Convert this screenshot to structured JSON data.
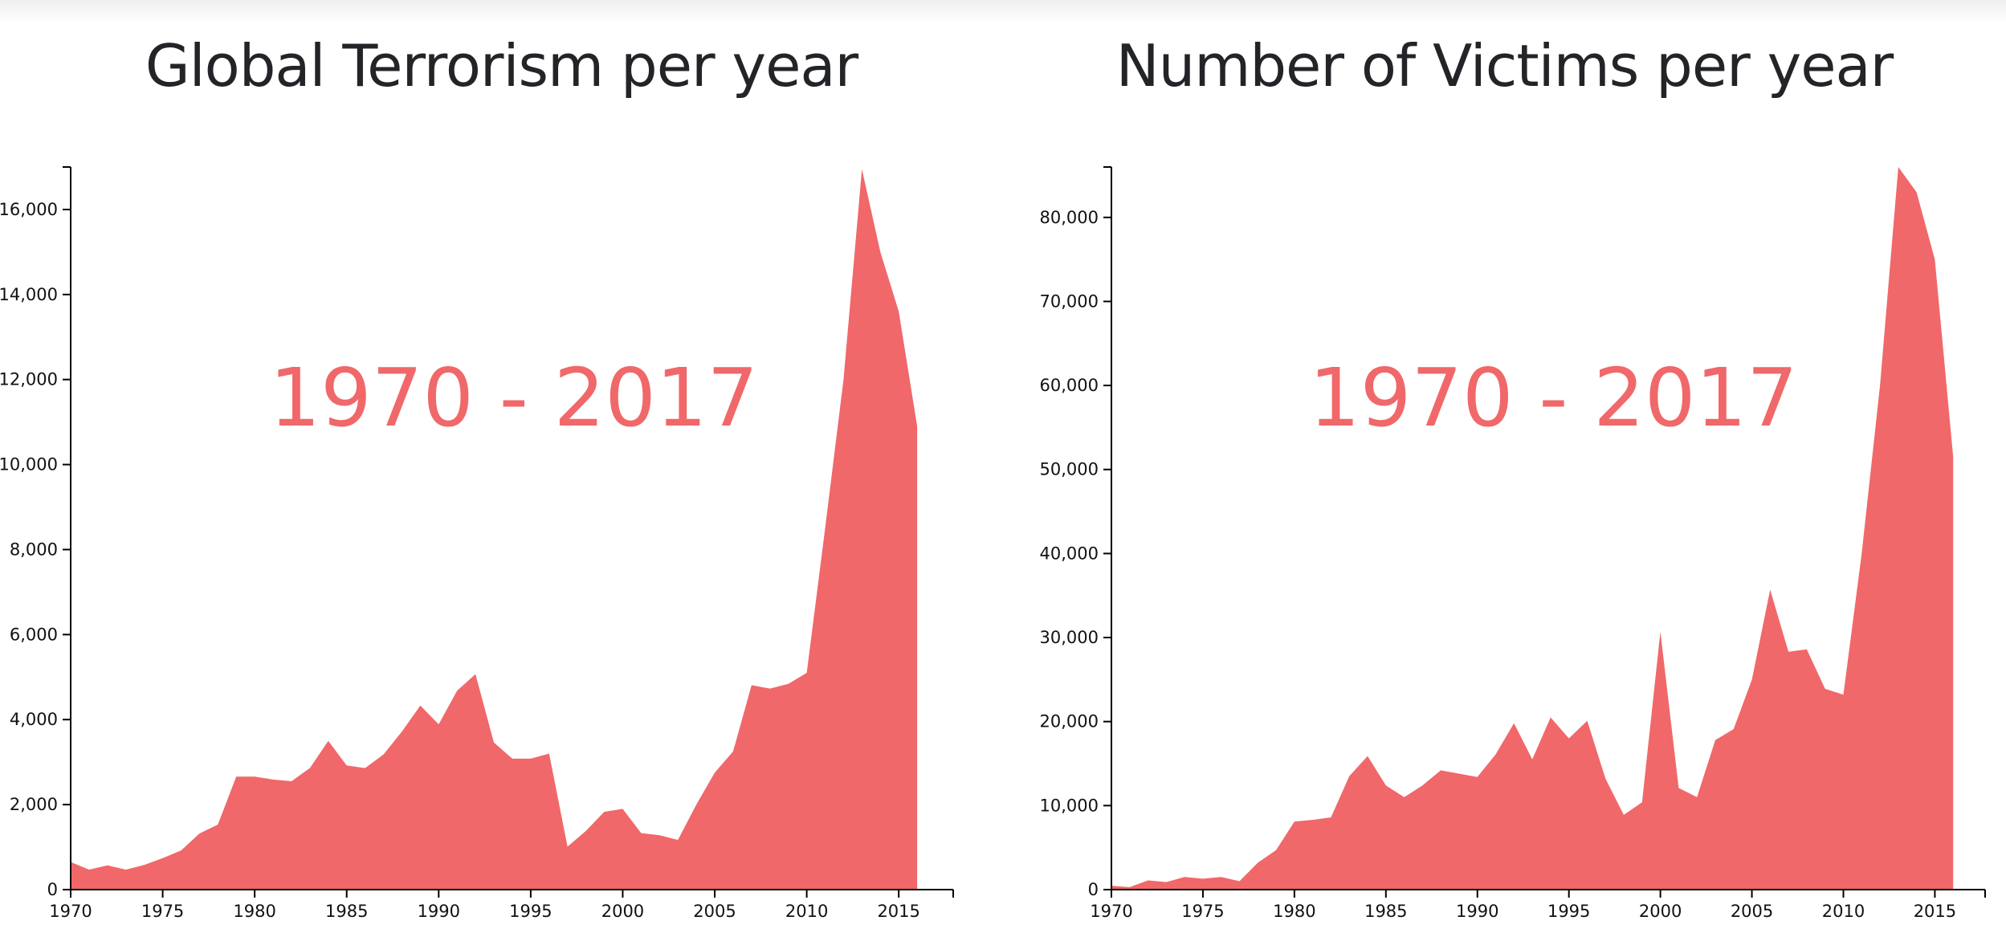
{
  "colors": {
    "area": "#f0686a",
    "axis": "#000000",
    "title": "#222428"
  },
  "chart_data": [
    {
      "type": "area",
      "title": "Global Terrorism per year",
      "annotation": "1970 - 2017",
      "xlabel": "",
      "ylabel": "",
      "xlim": [
        1970,
        2017
      ],
      "ylim": [
        0,
        17000
      ],
      "x": [
        1970,
        1971,
        1972,
        1973,
        1974,
        1975,
        1976,
        1977,
        1978,
        1979,
        1980,
        1981,
        1982,
        1983,
        1984,
        1985,
        1986,
        1987,
        1988,
        1989,
        1990,
        1991,
        1992,
        1993,
        1994,
        1995,
        1996,
        1997,
        1998,
        1999,
        2000,
        2001,
        2002,
        2003,
        2004,
        2005,
        2006,
        2007,
        2008,
        2009,
        2010,
        2011,
        2012,
        2013,
        2014,
        2015,
        2016
      ],
      "values": [
        650,
        470,
        570,
        470,
        580,
        740,
        920,
        1320,
        1530,
        2660,
        2660,
        2590,
        2550,
        2860,
        3500,
        2920,
        2860,
        3180,
        3720,
        4330,
        3890,
        4680,
        5070,
        3460,
        3080,
        3080,
        3200,
        1010,
        1380,
        1830,
        1900,
        1330,
        1280,
        1170,
        2000,
        2750,
        3250,
        4810,
        4730,
        4840,
        5100,
        8500,
        12000,
        16950,
        15000,
        13600,
        10900
      ],
      "xticks": [
        1970,
        1975,
        1980,
        1985,
        1990,
        1995,
        2000,
        2005,
        2010,
        2015
      ],
      "xtick_labels": [
        "1970",
        "1975",
        "1980",
        "1985",
        "1990",
        "1995",
        "2000",
        "2005",
        "2010",
        "2015"
      ],
      "yticks": [
        0,
        2000,
        4000,
        6000,
        8000,
        10000,
        12000,
        14000,
        16000
      ],
      "ytick_labels": [
        "0",
        "2,000",
        "4,000",
        "6,000",
        "8,000",
        "10,000",
        "12,000",
        "14,000",
        "16,000"
      ],
      "grid": false
    },
    {
      "type": "area",
      "title": "Number of Victims per year",
      "annotation": "1970 - 2017",
      "xlabel": "",
      "ylabel": "",
      "xlim": [
        1970,
        2017
      ],
      "ylim": [
        0,
        86000
      ],
      "x": [
        1970,
        1971,
        1972,
        1973,
        1974,
        1975,
        1976,
        1977,
        1978,
        1979,
        1980,
        1981,
        1982,
        1983,
        1984,
        1985,
        1986,
        1987,
        1988,
        1989,
        1990,
        1991,
        1992,
        1993,
        1994,
        1995,
        1996,
        1997,
        1998,
        1999,
        2000,
        2001,
        2002,
        2003,
        2004,
        2005,
        2006,
        2007,
        2008,
        2009,
        2010,
        2011,
        2012,
        2013,
        2014,
        2015,
        2016
      ],
      "values": [
        450,
        300,
        1100,
        900,
        1500,
        1300,
        1500,
        1000,
        3200,
        4700,
        8100,
        8300,
        8600,
        13500,
        15900,
        12400,
        11000,
        12400,
        14200,
        13800,
        13400,
        16100,
        19800,
        15500,
        20500,
        18000,
        20100,
        13200,
        8900,
        10400,
        30700,
        12100,
        11000,
        17800,
        19100,
        25000,
        35700,
        28300,
        28600,
        23900,
        23200,
        40000,
        60000,
        86000,
        83000,
        75000,
        51500
      ],
      "xticks": [
        1970,
        1975,
        1980,
        1985,
        1990,
        1995,
        2000,
        2005,
        2010,
        2015
      ],
      "xtick_labels": [
        "1970",
        "1975",
        "1980",
        "1985",
        "1990",
        "1995",
        "2000",
        "2005",
        "2010",
        "2015"
      ],
      "yticks": [
        0,
        10000,
        20000,
        30000,
        40000,
        50000,
        60000,
        70000,
        80000
      ],
      "ytick_labels": [
        "0",
        "10,000",
        "20,000",
        "30,000",
        "40,000",
        "50,000",
        "60,000",
        "70,000",
        "80,000"
      ],
      "grid": false
    }
  ]
}
